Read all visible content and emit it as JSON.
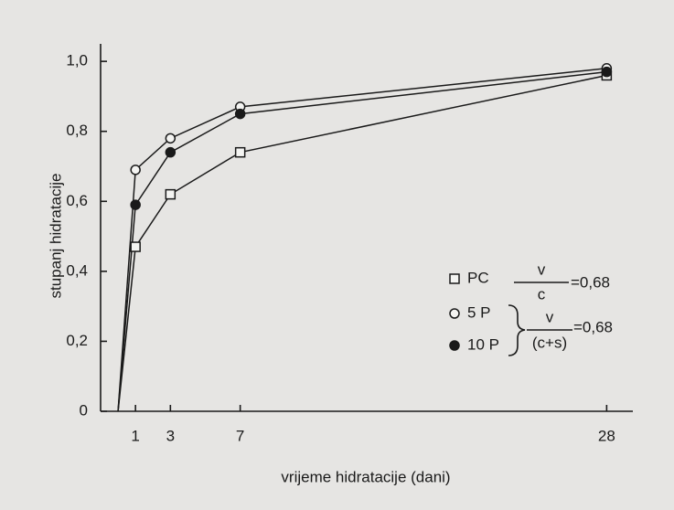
{
  "chart_data": {
    "type": "line",
    "xlabel": "vrijeme hidratacije (dani)",
    "ylabel": "stupanj hidratacije",
    "x": [
      0,
      1,
      3,
      7,
      28
    ],
    "series": [
      {
        "name": "PC",
        "color": "#1a1a1a",
        "marker": "square",
        "values": [
          0,
          0.47,
          0.62,
          0.74,
          0.96
        ]
      },
      {
        "name": "5 P",
        "color": "#1a1a1a",
        "marker": "open-circle",
        "values": [
          0,
          0.69,
          0.78,
          0.87,
          0.98
        ]
      },
      {
        "name": "10 P",
        "color": "#1a1a1a",
        "marker": "filled-circle",
        "values": [
          0,
          0.59,
          0.74,
          0.85,
          0.97
        ]
      }
    ],
    "xlim": [
      -1,
      29.5
    ],
    "xticks": [
      1,
      3,
      7,
      28
    ],
    "ylim": [
      0,
      1.05
    ],
    "yticks": [
      0,
      {
        "value": 0.2,
        "label": "0,2"
      },
      {
        "value": 0.4,
        "label": "0,4"
      },
      {
        "value": 0.6,
        "label": "0,6"
      },
      {
        "value": 0.8,
        "label": "0,8"
      },
      {
        "value": 1,
        "label": "1,0"
      }
    ],
    "annotations": {
      "pc_ratio": {
        "numerator": "v",
        "denominator": "c",
        "equals": "=0,68"
      },
      "pozzolan_ratio": {
        "numerator": "v",
        "denominator": "(c+s)",
        "equals": "=0,68"
      }
    }
  }
}
